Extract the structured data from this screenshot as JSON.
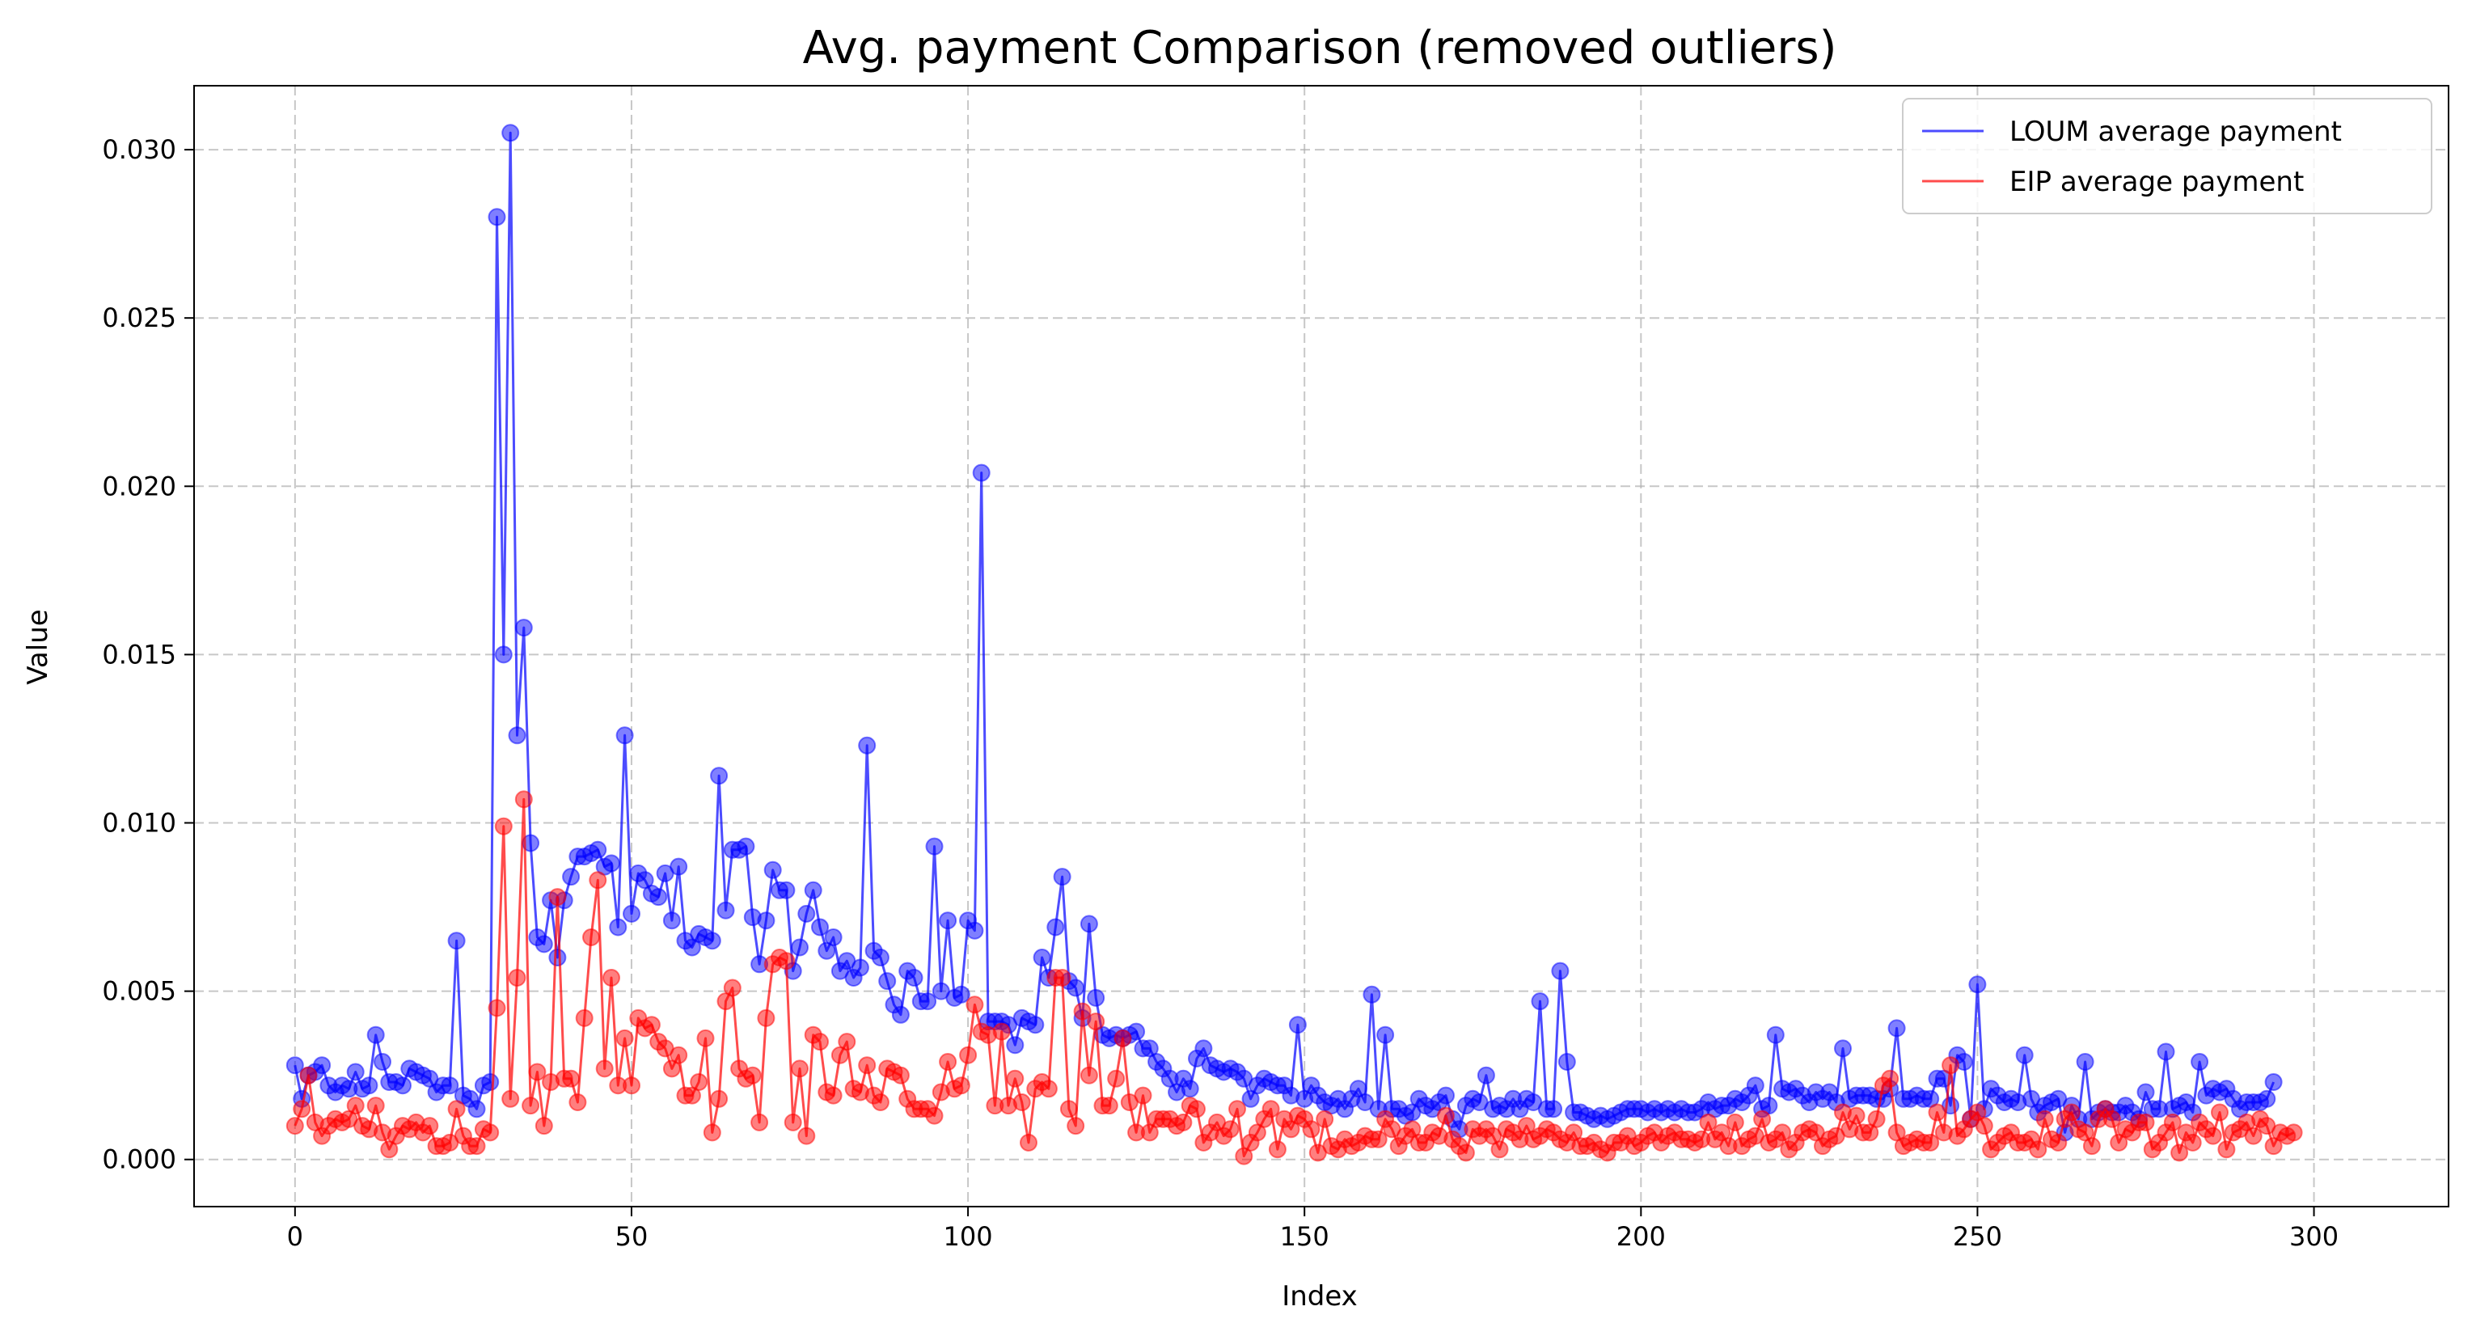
{
  "chart_data": {
    "type": "line",
    "title": "Avg. payment Comparison (removed outliers)",
    "xlabel": "Index",
    "ylabel": "Value",
    "xlim": [
      -15,
      320
    ],
    "ylim": [
      -0.0014,
      0.0319
    ],
    "xticks": [
      0,
      50,
      100,
      150,
      200,
      250,
      300
    ],
    "xtick_labels": [
      "0",
      "50",
      "100",
      "150",
      "200",
      "250",
      "300"
    ],
    "yticks": [
      0.0,
      0.005,
      0.01,
      0.015,
      0.02,
      0.025,
      0.03
    ],
    "ytick_labels": [
      "0.000",
      "0.005",
      "0.010",
      "0.015",
      "0.020",
      "0.025",
      "0.030"
    ],
    "grid": true,
    "legend_position": "top-right",
    "x_start": 0,
    "series": [
      {
        "name": "LOUM average payment",
        "color": "#0000ff",
        "markers": true,
        "values": [
          0.0028,
          0.0018,
          0.0025,
          0.0026,
          0.0028,
          0.0022,
          0.002,
          0.0022,
          0.0021,
          0.0026,
          0.0021,
          0.0022,
          0.0037,
          0.0029,
          0.0023,
          0.0023,
          0.0022,
          0.0027,
          0.0026,
          0.0025,
          0.0024,
          0.002,
          0.0022,
          0.0022,
          0.0065,
          0.0019,
          0.0018,
          0.0015,
          0.0022,
          0.0023,
          0.028,
          0.015,
          0.0305,
          0.0126,
          0.0158,
          0.0094,
          0.0066,
          0.0064,
          0.0077,
          0.006,
          0.0077,
          0.0084,
          0.009,
          0.009,
          0.0091,
          0.0092,
          0.0087,
          0.0088,
          0.0069,
          0.0126,
          0.0073,
          0.0085,
          0.0083,
          0.0079,
          0.0078,
          0.0085,
          0.0071,
          0.0087,
          0.0065,
          0.0063,
          0.0067,
          0.0066,
          0.0065,
          0.0114,
          0.0074,
          0.0092,
          0.0092,
          0.0093,
          0.0072,
          0.0058,
          0.0071,
          0.0086,
          0.008,
          0.008,
          0.0056,
          0.0063,
          0.0073,
          0.008,
          0.0069,
          0.0062,
          0.0066,
          0.0056,
          0.0059,
          0.0054,
          0.0057,
          0.0123,
          0.0062,
          0.006,
          0.0053,
          0.0046,
          0.0043,
          0.0056,
          0.0054,
          0.0047,
          0.0047,
          0.0093,
          0.005,
          0.0071,
          0.0048,
          0.0049,
          0.0071,
          0.0068,
          0.0204,
          0.0041,
          0.0041,
          0.0041,
          0.004,
          0.0034,
          0.0042,
          0.0041,
          0.004,
          0.006,
          0.0054,
          0.0069,
          0.0084,
          0.0053,
          0.0051,
          0.0042,
          0.007,
          0.0048,
          0.0037,
          0.0036,
          0.0037,
          0.0036,
          0.0037,
          0.0038,
          0.0033,
          0.0033,
          0.0029,
          0.0027,
          0.0024,
          0.002,
          0.0024,
          0.0021,
          0.003,
          0.0033,
          0.0028,
          0.0027,
          0.0026,
          0.0027,
          0.0026,
          0.0024,
          0.0018,
          0.0022,
          0.0024,
          0.0023,
          0.0022,
          0.0022,
          0.0019,
          0.004,
          0.0018,
          0.0022,
          0.0019,
          0.0017,
          0.0016,
          0.0018,
          0.0015,
          0.0018,
          0.0021,
          0.0017,
          0.0049,
          0.0015,
          0.0037,
          0.0015,
          0.0015,
          0.0013,
          0.0014,
          0.0018,
          0.0016,
          0.0015,
          0.0017,
          0.0019,
          0.0012,
          0.0009,
          0.0016,
          0.0018,
          0.0017,
          0.0025,
          0.0015,
          0.0016,
          0.0015,
          0.0018,
          0.0015,
          0.0018,
          0.0017,
          0.0047,
          0.0015,
          0.0015,
          0.0056,
          0.0029,
          0.0014,
          0.0014,
          0.0013,
          0.0012,
          0.0013,
          0.0012,
          0.0013,
          0.0014,
          0.0015,
          0.0015,
          0.0015,
          0.0014,
          0.0015,
          0.0014,
          0.0015,
          0.0014,
          0.0015,
          0.0014,
          0.0014,
          0.0015,
          0.0017,
          0.0015,
          0.0016,
          0.0016,
          0.0018,
          0.0017,
          0.0019,
          0.0022,
          0.0015,
          0.0016,
          0.0037,
          0.0021,
          0.002,
          0.0021,
          0.0019,
          0.0017,
          0.002,
          0.0018,
          0.002,
          0.0017,
          0.0033,
          0.0018,
          0.0019,
          0.0019,
          0.0019,
          0.0018,
          0.0018,
          0.0021,
          0.0039,
          0.0018,
          0.0018,
          0.0019,
          0.0018,
          0.0018,
          0.0024,
          0.0024,
          0.0016,
          0.0031,
          0.0029,
          0.0012,
          0.0052,
          0.0015,
          0.0021,
          0.0019,
          0.0017,
          0.0018,
          0.0017,
          0.0031,
          0.0018,
          0.0014,
          0.0016,
          0.0017,
          0.0018,
          0.0008,
          0.0016,
          0.0012,
          0.0029,
          0.0012,
          0.0014,
          0.0015,
          0.0014,
          0.0014,
          0.0016,
          0.0014,
          0.0012,
          0.002,
          0.0015,
          0.0015,
          0.0032,
          0.0015,
          0.0016,
          0.0017,
          0.0014,
          0.0029,
          0.0019,
          0.0021,
          0.002,
          0.0021,
          0.0018,
          0.0015,
          0.0017,
          0.0017,
          0.0017,
          0.0018,
          0.0023
        ]
      },
      {
        "name": "EIP average payment",
        "color": "#ff0000",
        "markers": true,
        "values": [
          0.001,
          0.0015,
          0.0025,
          0.0011,
          0.0007,
          0.001,
          0.0012,
          0.0011,
          0.0012,
          0.0016,
          0.001,
          0.0009,
          0.0016,
          0.0008,
          0.0003,
          0.0007,
          0.001,
          0.0009,
          0.0011,
          0.0008,
          0.001,
          0.0004,
          0.0004,
          0.0005,
          0.0015,
          0.0007,
          0.0004,
          0.0004,
          0.0009,
          0.0008,
          0.0045,
          0.0099,
          0.0018,
          0.0054,
          0.0107,
          0.0016,
          0.0026,
          0.001,
          0.0023,
          0.0078,
          0.0024,
          0.0024,
          0.0017,
          0.0042,
          0.0066,
          0.0083,
          0.0027,
          0.0054,
          0.0022,
          0.0036,
          0.0022,
          0.0042,
          0.0039,
          0.004,
          0.0035,
          0.0033,
          0.0027,
          0.0031,
          0.0019,
          0.0019,
          0.0023,
          0.0036,
          0.0008,
          0.0018,
          0.0047,
          0.0051,
          0.0027,
          0.0024,
          0.0025,
          0.0011,
          0.0042,
          0.0058,
          0.006,
          0.0059,
          0.0011,
          0.0027,
          0.0007,
          0.0037,
          0.0035,
          0.002,
          0.0019,
          0.0031,
          0.0035,
          0.0021,
          0.002,
          0.0028,
          0.0019,
          0.0017,
          0.0027,
          0.0026,
          0.0025,
          0.0018,
          0.0015,
          0.0015,
          0.0015,
          0.0013,
          0.002,
          0.0029,
          0.0021,
          0.0022,
          0.0031,
          0.0046,
          0.0038,
          0.0037,
          0.0016,
          0.0038,
          0.0016,
          0.0024,
          0.0017,
          0.0005,
          0.0021,
          0.0023,
          0.0021,
          0.0054,
          0.0054,
          0.0015,
          0.001,
          0.0044,
          0.0025,
          0.0041,
          0.0016,
          0.0016,
          0.0024,
          0.0036,
          0.0017,
          0.0008,
          0.0019,
          0.0008,
          0.0012,
          0.0012,
          0.0012,
          0.001,
          0.0011,
          0.0016,
          0.0015,
          0.0005,
          0.0008,
          0.0011,
          0.0007,
          0.0009,
          0.0015,
          0.0001,
          0.0005,
          0.0008,
          0.0012,
          0.0015,
          0.0003,
          0.0012,
          0.0009,
          0.0013,
          0.0012,
          0.0009,
          0.0002,
          0.0012,
          0.0004,
          0.0003,
          0.0006,
          0.0004,
          0.0005,
          0.0007,
          0.0006,
          0.0006,
          0.0012,
          0.0009,
          0.0004,
          0.0007,
          0.0009,
          0.0005,
          0.0005,
          0.0008,
          0.0007,
          0.0013,
          0.0006,
          0.0004,
          0.0002,
          0.0009,
          0.0007,
          0.0009,
          0.0007,
          0.0003,
          0.0009,
          0.0008,
          0.0006,
          0.001,
          0.0006,
          0.0007,
          0.0009,
          0.0008,
          0.0006,
          0.0005,
          0.0008,
          0.0004,
          0.0004,
          0.0005,
          0.0003,
          0.0002,
          0.0005,
          0.0005,
          0.0007,
          0.0004,
          0.0005,
          0.0007,
          0.0008,
          0.0005,
          0.0007,
          0.0008,
          0.0006,
          0.0006,
          0.0005,
          0.0006,
          0.0011,
          0.0006,
          0.0008,
          0.0004,
          0.0011,
          0.0004,
          0.0006,
          0.0007,
          0.0012,
          0.0005,
          0.0006,
          0.0008,
          0.0003,
          0.0005,
          0.0008,
          0.0009,
          0.0008,
          0.0004,
          0.0006,
          0.0007,
          0.0014,
          0.0009,
          0.0013,
          0.0008,
          0.0008,
          0.0012,
          0.0022,
          0.0024,
          0.0008,
          0.0004,
          0.0005,
          0.0006,
          0.0005,
          0.0005,
          0.0014,
          0.0008,
          0.0028,
          0.0007,
          0.0009,
          0.0012,
          0.0014,
          0.001,
          0.0003,
          0.0005,
          0.0007,
          0.0008,
          0.0005,
          0.0005,
          0.0006,
          0.0003,
          0.0012,
          0.0006,
          0.0005,
          0.0012,
          0.0014,
          0.0009,
          0.0008,
          0.0004,
          0.0012,
          0.0015,
          0.0012,
          0.0005,
          0.0009,
          0.0008,
          0.0011,
          0.0011,
          0.0003,
          0.0005,
          0.0008,
          0.0011,
          0.0002,
          0.0008,
          0.0005,
          0.0011,
          0.0009,
          0.0007,
          0.0014,
          0.0003,
          0.0008,
          0.0009,
          0.0011,
          0.0007,
          0.0012,
          0.001,
          0.0004,
          0.0008,
          0.0007,
          0.0008
        ]
      }
    ]
  }
}
